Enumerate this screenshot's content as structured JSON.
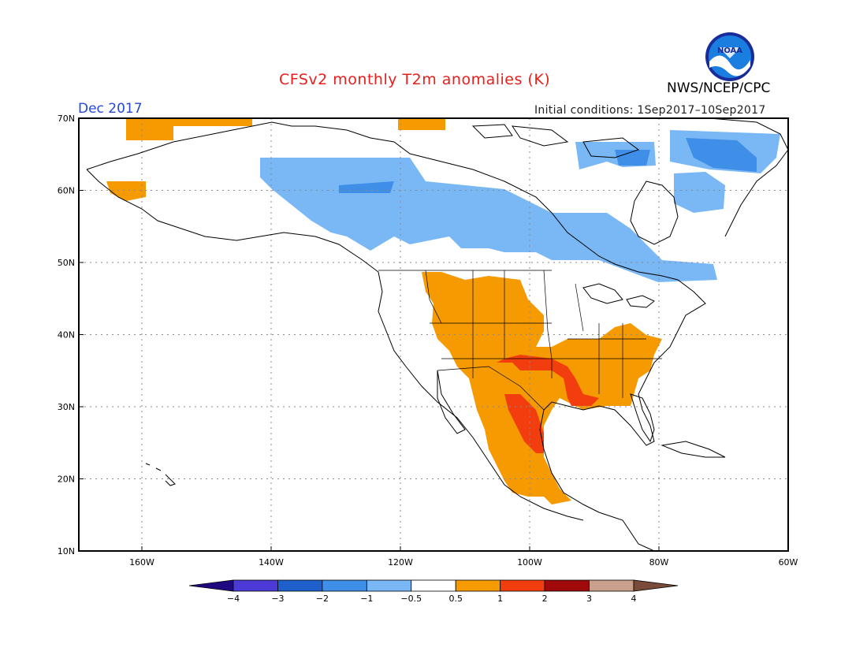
{
  "title": "CFSv2 monthly T2m anomalies (K)",
  "valid_month": "Dec 2017",
  "initial_conditions": "Initial conditions: 1Sep2017–10Sep2017",
  "agency": "NWS/NCEP/CPC",
  "logo_text": "NOAA",
  "colors": {
    "warm_05_1": "#f59a00",
    "warm_1_2": "#f23d0e",
    "cool_m05_m1": "#7ab8f5",
    "cool_m1_m2": "#3f8ee8",
    "cool_m2_m3": "#1e5fcc",
    "land_outline": "#000000",
    "grid": "#8a8a8a"
  },
  "lat_labels": [
    "70N",
    "60N",
    "50N",
    "40N",
    "30N",
    "20N",
    "10N"
  ],
  "lon_labels": [
    "160W",
    "140W",
    "120W",
    "100W",
    "80W",
    "60W"
  ],
  "colorbar": {
    "labels": [
      "−4",
      "−3",
      "−2",
      "−1",
      "−0.5",
      "0.5",
      "1",
      "2",
      "3",
      "4"
    ],
    "colors": [
      "#200880",
      "#4b3ad6",
      "#1e5fcc",
      "#3f8ee8",
      "#7ab8f5",
      "#ffffff",
      "#f59a00",
      "#f23d0e",
      "#a00a0a",
      "#c8a08c",
      "#7a4a3a"
    ]
  }
}
